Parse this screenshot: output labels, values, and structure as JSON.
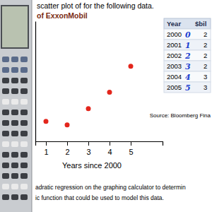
{
  "chart_data": {
    "type": "scatter",
    "title": "scatter plot of for the following data.",
    "subtitle": "of ExxonMobil",
    "xlabel": "Years since 2000",
    "x": [
      1,
      2,
      3,
      4,
      5
    ],
    "values": [
      213,
      204,
      247,
      291,
      360
    ],
    "color": "#e3261c",
    "marker": "circle",
    "xlim": [
      0.5,
      6.5
    ],
    "xticks": [
      1,
      2,
      3,
      4,
      5
    ],
    "ylim": [
      160,
      480
    ],
    "tick_labels": "x",
    "grid": false,
    "annotations": [
      "adratic regression on the graphing calculator to determin",
      "ic function that could be used to model this data."
    ]
  },
  "table": {
    "header": [
      "Year",
      "$bil"
    ],
    "rows": [
      {
        "year": "2000",
        "index": "0",
        "value": "2"
      },
      {
        "year": "2001",
        "index": "1",
        "value": "2"
      },
      {
        "year": "2002",
        "index": "2",
        "value": "2"
      },
      {
        "year": "2003",
        "index": "3",
        "value": "2"
      },
      {
        "year": "2004",
        "index": "4",
        "value": "3"
      },
      {
        "year": "2005",
        "index": "5",
        "value": "3"
      }
    ],
    "source": "Source: Bloomberg Fina"
  }
}
